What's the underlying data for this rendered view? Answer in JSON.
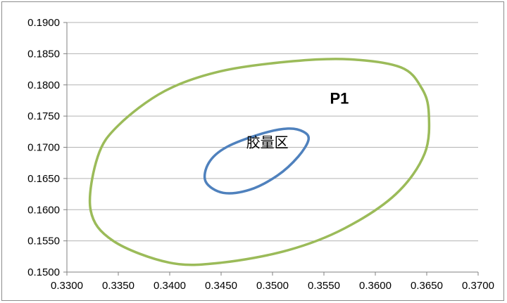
{
  "chart_data": {
    "type": "scatter",
    "title": "",
    "xlabel": "",
    "ylabel": "",
    "xlim": [
      0.33,
      0.37
    ],
    "ylim": [
      0.15,
      0.19
    ],
    "x_ticks": [
      "0.3300",
      "0.3350",
      "0.3400",
      "0.3450",
      "0.3500",
      "0.3550",
      "0.3600",
      "0.3650",
      "0.3700"
    ],
    "y_ticks": [
      "0.1900",
      "0.1850",
      "0.1800",
      "0.1750",
      "0.1700",
      "0.1650",
      "0.1600",
      "0.1550",
      "0.1500"
    ],
    "grid": "horizontal",
    "legend": "none",
    "series": [
      {
        "name": "P1",
        "color": "#9BBB59",
        "shape": "ellipse",
        "points": [
          [
            0.3652,
            0.1755
          ],
          [
            0.3645,
            0.1795
          ],
          [
            0.3625,
            0.1828
          ],
          [
            0.3575,
            0.1841
          ],
          [
            0.352,
            0.1838
          ],
          [
            0.345,
            0.1822
          ],
          [
            0.3395,
            0.179
          ],
          [
            0.335,
            0.1735
          ],
          [
            0.333,
            0.1685
          ],
          [
            0.3323,
            0.16
          ],
          [
            0.3345,
            0.155
          ],
          [
            0.34,
            0.1515
          ],
          [
            0.345,
            0.1515
          ],
          [
            0.3515,
            0.1535
          ],
          [
            0.357,
            0.157
          ],
          [
            0.362,
            0.1625
          ],
          [
            0.3648,
            0.169
          ],
          [
            0.3652,
            0.1755
          ]
        ]
      },
      {
        "name": "胶量区",
        "color": "#4F81BD",
        "shape": "ellipse",
        "points": [
          [
            0.3535,
            0.1712
          ],
          [
            0.353,
            0.1725
          ],
          [
            0.3515,
            0.173
          ],
          [
            0.349,
            0.1722
          ],
          [
            0.3455,
            0.17
          ],
          [
            0.3438,
            0.1675
          ],
          [
            0.3435,
            0.1645
          ],
          [
            0.3452,
            0.1627
          ],
          [
            0.3478,
            0.1632
          ],
          [
            0.3505,
            0.1655
          ],
          [
            0.3525,
            0.1685
          ],
          [
            0.3535,
            0.1712
          ]
        ]
      }
    ],
    "labels": [
      {
        "text": "P1",
        "x": 0.3565,
        "y": 0.177,
        "bold": true
      },
      {
        "text": "胶量区",
        "x": 0.3495,
        "y": 0.17,
        "bold": false
      }
    ]
  }
}
